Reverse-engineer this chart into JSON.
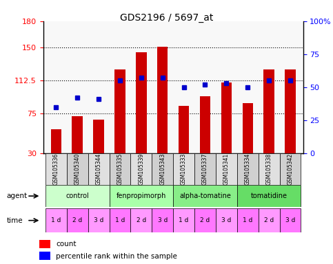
{
  "title": "GDS2196 / 5697_at",
  "samples": [
    "GSM105336",
    "GSM105340",
    "GSM105344",
    "GSM105335",
    "GSM105339",
    "GSM105343",
    "GSM105333",
    "GSM105337",
    "GSM105341",
    "GSM105334",
    "GSM105338",
    "GSM105342"
  ],
  "bar_values": [
    57,
    72,
    68,
    125,
    145,
    151,
    84,
    95,
    110,
    87,
    125,
    125
  ],
  "percentile_values": [
    35,
    42,
    41,
    55,
    57,
    57,
    50,
    52,
    53,
    50,
    55,
    55
  ],
  "ylim_left": [
    30,
    180
  ],
  "ylim_right": [
    0,
    100
  ],
  "left_ticks": [
    30,
    75,
    112.5,
    150,
    180
  ],
  "right_ticks": [
    0,
    25,
    50,
    75,
    100
  ],
  "right_tick_labels": [
    "0",
    "25",
    "50",
    "75",
    "100%"
  ],
  "bar_color": "#CC0000",
  "dot_color": "#0000CC",
  "agents": [
    "control",
    "fenpropimorph",
    "alpha-tomatine",
    "tomatidine"
  ],
  "agent_colors": [
    "#CCFFCC",
    "#99FF99",
    "#66FF66",
    "#33CC33"
  ],
  "agent_bg_colors": [
    "#CCFFCC",
    "#AAFFAA",
    "#88FF88",
    "#55DD55"
  ],
  "time_labels": [
    "1 d",
    "2 d",
    "3 d",
    "1 d",
    "2 d",
    "3 d",
    "1 d",
    "2 d",
    "3 d",
    "1 d",
    "2 d",
    "3 d"
  ],
  "time_color": "#FF66FF",
  "grid_color": "#000000",
  "background_color": "#FFFFFF",
  "plot_bg": "#F0F0F0"
}
